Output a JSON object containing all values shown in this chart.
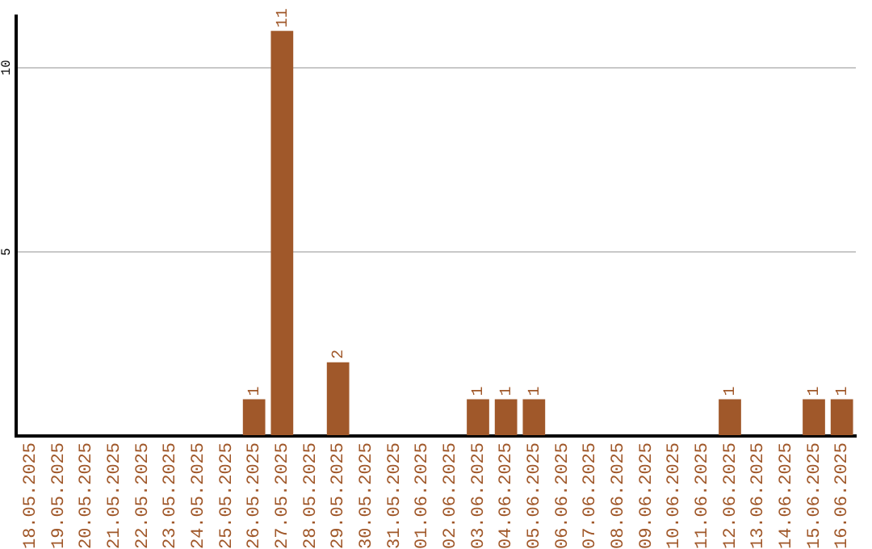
{
  "chart_data": {
    "type": "bar",
    "categories": [
      "18.05.2025",
      "19.05.2025",
      "20.05.2025",
      "21.05.2025",
      "22.05.2025",
      "23.05.2025",
      "24.05.2025",
      "25.05.2025",
      "26.05.2025",
      "27.05.2025",
      "28.05.2025",
      "29.05.2025",
      "30.05.2025",
      "31.05.2025",
      "01.06.2025",
      "02.06.2025",
      "03.06.2025",
      "04.06.2025",
      "05.06.2025",
      "06.06.2025",
      "07.06.2025",
      "08.06.2025",
      "09.06.2025",
      "10.06.2025",
      "11.06.2025",
      "12.06.2025",
      "13.06.2025",
      "14.06.2025",
      "15.06.2025",
      "16.06.2025"
    ],
    "values": [
      0,
      0,
      0,
      0,
      0,
      0,
      0,
      0,
      1,
      11,
      0,
      2,
      0,
      0,
      0,
      0,
      1,
      1,
      1,
      0,
      0,
      0,
      0,
      0,
      0,
      1,
      0,
      0,
      1,
      1
    ],
    "value_labels": [
      null,
      null,
      null,
      null,
      null,
      null,
      null,
      null,
      "1",
      "11",
      null,
      "2",
      null,
      null,
      null,
      null,
      "1",
      "1",
      "1",
      null,
      null,
      null,
      null,
      null,
      null,
      "1",
      null,
      null,
      "1",
      "1"
    ],
    "color": "#a0582a",
    "ylim": [
      0,
      11.4
    ],
    "yticks": [
      {
        "value": 0,
        "label": null
      },
      5,
      10
    ],
    "grid": "y",
    "legend": false
  }
}
